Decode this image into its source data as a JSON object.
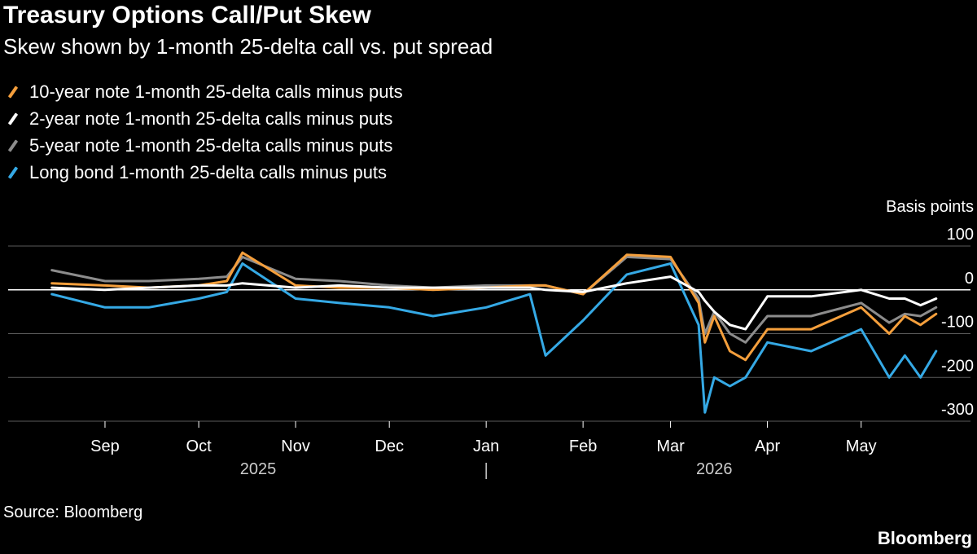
{
  "header": {
    "title": "Treasury Options Call/Put Skew",
    "subtitle": "Skew shown by 1-month 25-delta call vs. put spread"
  },
  "footer": {
    "source": "Source: Bloomberg",
    "brand": "Bloomberg"
  },
  "chart_data": {
    "type": "line",
    "ylabel": "Basis points",
    "ylim": [
      -300,
      100
    ],
    "yticks": [
      100,
      0,
      -100,
      -200,
      -300
    ],
    "grid": true,
    "legend_position": "top-left",
    "x_axis": {
      "months": [
        "Sep",
        "Oct",
        "Nov",
        "Dec",
        "Jan",
        "Feb",
        "Mar",
        "Apr",
        "May"
      ],
      "years": [
        "2025",
        "2026"
      ]
    },
    "x": [
      "2025-08-15",
      "2025-09-01",
      "2025-09-15",
      "2025-10-01",
      "2025-10-10",
      "2025-10-15",
      "2025-11-01",
      "2025-11-15",
      "2025-12-01",
      "2025-12-15",
      "2026-01-01",
      "2026-01-15",
      "2026-01-20",
      "2026-02-01",
      "2026-02-15",
      "2026-03-01",
      "2026-03-10",
      "2026-03-12",
      "2026-03-15",
      "2026-03-20",
      "2026-03-25",
      "2026-04-01",
      "2026-04-15",
      "2026-05-01",
      "2026-05-10",
      "2026-05-15",
      "2026-05-20",
      "2026-05-25"
    ],
    "series": [
      {
        "name": "10-year note 1-month 25-delta calls minus puts",
        "color": "#f59f3c",
        "values": [
          15,
          10,
          5,
          10,
          20,
          85,
          10,
          5,
          5,
          0,
          5,
          10,
          10,
          -10,
          80,
          75,
          -30,
          -120,
          -60,
          -140,
          -160,
          -90,
          -90,
          -40,
          -100,
          -60,
          -80,
          -55
        ]
      },
      {
        "name": "2-year note 1-month 25-delta calls minus puts",
        "color": "#ffffff",
        "values": [
          5,
          0,
          5,
          10,
          10,
          15,
          5,
          10,
          5,
          5,
          5,
          5,
          0,
          -5,
          15,
          30,
          -5,
          -25,
          -50,
          -80,
          -90,
          -15,
          -15,
          0,
          -20,
          -20,
          -35,
          -20
        ]
      },
      {
        "name": "5-year note 1-month 25-delta calls minus puts",
        "color": "#8c8c8c",
        "values": [
          45,
          20,
          20,
          25,
          30,
          75,
          25,
          20,
          10,
          5,
          10,
          10,
          10,
          -10,
          75,
          70,
          -20,
          -100,
          -50,
          -100,
          -120,
          -60,
          -60,
          -30,
          -75,
          -55,
          -60,
          -40
        ]
      },
      {
        "name": "Long bond 1-month 25-delta calls minus puts",
        "color": "#35a9e5",
        "values": [
          -10,
          -40,
          -40,
          -20,
          -5,
          60,
          -20,
          -30,
          -40,
          -60,
          -40,
          -10,
          -150,
          -70,
          35,
          60,
          -80,
          -280,
          -200,
          -220,
          -200,
          -120,
          -140,
          -90,
          -200,
          -150,
          -200,
          -140
        ]
      }
    ]
  }
}
